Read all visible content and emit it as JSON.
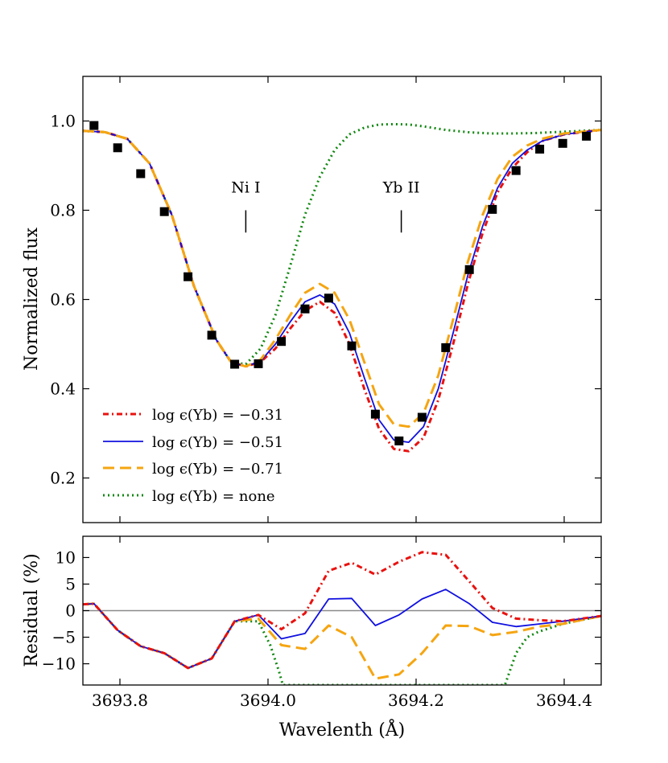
{
  "chart_data": [
    {
      "type": "line",
      "panel": "top",
      "ylabel": "Normalized flux",
      "xlim": [
        3693.75,
        3694.45
      ],
      "ylim": [
        0.1,
        1.1
      ],
      "xticks": [
        3693.8,
        3694.0,
        3694.2,
        3694.4
      ],
      "yticks": [
        0.2,
        0.4,
        0.6,
        0.8,
        1.0
      ],
      "ytick_labels": [
        "0.2",
        "0.4",
        "0.6",
        "0.8",
        "1.0"
      ],
      "annotations": [
        {
          "text": "Ni I",
          "x": 3693.97,
          "y_text": 0.84,
          "line_y": [
            0.75,
            0.8
          ]
        },
        {
          "text": "Yb II",
          "x": 3694.18,
          "y_text": 0.84,
          "line_y": [
            0.75,
            0.8
          ]
        }
      ],
      "observed": {
        "name": "Observed",
        "color": "#000000",
        "x": [
          3693.765,
          3693.797,
          3693.828,
          3693.86,
          3693.892,
          3693.924,
          3693.955,
          3693.987,
          3694.018,
          3694.05,
          3694.082,
          3694.113,
          3694.145,
          3694.177,
          3694.208,
          3694.24,
          3694.272,
          3694.303,
          3694.335,
          3694.367,
          3694.398,
          3694.43
        ],
        "y": [
          0.99,
          0.94,
          0.882,
          0.797,
          0.651,
          0.52,
          0.455,
          0.456,
          0.506,
          0.579,
          0.603,
          0.496,
          0.343,
          0.283,
          0.336,
          0.492,
          0.667,
          0.802,
          0.889,
          0.937,
          0.95,
          0.966
        ]
      },
      "series": [
        {
          "name": "Yb -0.31",
          "color": "#e8120f",
          "dash": "7 4 2 4",
          "x": [
            3693.75,
            3693.78,
            3693.81,
            3693.84,
            3693.87,
            3693.9,
            3693.93,
            3693.95,
            3693.97,
            3693.99,
            3694.01,
            3694.03,
            3694.05,
            3694.07,
            3694.09,
            3694.11,
            3694.13,
            3694.15,
            3694.17,
            3694.19,
            3694.21,
            3694.23,
            3694.25,
            3694.27,
            3694.29,
            3694.31,
            3694.33,
            3694.35,
            3694.37,
            3694.4,
            3694.45
          ],
          "y": [
            0.978,
            0.975,
            0.96,
            0.905,
            0.79,
            0.63,
            0.51,
            0.46,
            0.45,
            0.46,
            0.49,
            0.535,
            0.575,
            0.595,
            0.57,
            0.5,
            0.4,
            0.31,
            0.265,
            0.26,
            0.29,
            0.375,
            0.5,
            0.635,
            0.75,
            0.84,
            0.895,
            0.93,
            0.955,
            0.97,
            0.98
          ]
        },
        {
          "name": "Yb -0.51",
          "color": "#1010e0",
          "dash": "",
          "x": [
            3693.75,
            3693.78,
            3693.81,
            3693.84,
            3693.87,
            3693.9,
            3693.93,
            3693.95,
            3693.97,
            3693.99,
            3694.01,
            3694.03,
            3694.05,
            3694.07,
            3694.09,
            3694.11,
            3694.13,
            3694.15,
            3694.17,
            3694.19,
            3694.21,
            3694.23,
            3694.25,
            3694.27,
            3694.29,
            3694.31,
            3694.33,
            3694.35,
            3694.37,
            3694.4,
            3694.45
          ],
          "y": [
            0.978,
            0.975,
            0.96,
            0.905,
            0.79,
            0.63,
            0.51,
            0.46,
            0.45,
            0.462,
            0.5,
            0.55,
            0.595,
            0.61,
            0.59,
            0.525,
            0.425,
            0.33,
            0.285,
            0.28,
            0.315,
            0.4,
            0.525,
            0.655,
            0.765,
            0.85,
            0.905,
            0.935,
            0.955,
            0.97,
            0.98
          ]
        },
        {
          "name": "Yb -0.71",
          "color": "#f5a511",
          "dash": "14 7",
          "x": [
            3693.75,
            3693.78,
            3693.81,
            3693.84,
            3693.87,
            3693.9,
            3693.93,
            3693.95,
            3693.97,
            3693.99,
            3694.01,
            3694.03,
            3694.05,
            3694.07,
            3694.09,
            3694.11,
            3694.13,
            3694.15,
            3694.17,
            3694.19,
            3694.21,
            3694.23,
            3694.25,
            3694.27,
            3694.29,
            3694.31,
            3694.33,
            3694.35,
            3694.37,
            3694.4,
            3694.45
          ],
          "y": [
            0.978,
            0.975,
            0.96,
            0.905,
            0.79,
            0.63,
            0.51,
            0.46,
            0.45,
            0.465,
            0.51,
            0.565,
            0.615,
            0.635,
            0.615,
            0.555,
            0.46,
            0.365,
            0.32,
            0.315,
            0.345,
            0.43,
            0.555,
            0.685,
            0.79,
            0.87,
            0.92,
            0.945,
            0.96,
            0.972,
            0.98
          ]
        },
        {
          "name": "Yb none",
          "color": "#118811",
          "dash": "2 4",
          "x": [
            3693.75,
            3693.78,
            3693.81,
            3693.84,
            3693.87,
            3693.9,
            3693.93,
            3693.95,
            3693.97,
            3693.99,
            3694.01,
            3694.03,
            3694.05,
            3694.07,
            3694.09,
            3694.11,
            3694.13,
            3694.15,
            3694.17,
            3694.19,
            3694.21,
            3694.24,
            3694.27,
            3694.3,
            3694.33,
            3694.36,
            3694.4,
            3694.45
          ],
          "y": [
            0.978,
            0.975,
            0.96,
            0.905,
            0.79,
            0.63,
            0.51,
            0.46,
            0.455,
            0.49,
            0.565,
            0.675,
            0.79,
            0.875,
            0.935,
            0.97,
            0.985,
            0.992,
            0.993,
            0.992,
            0.988,
            0.98,
            0.975,
            0.972,
            0.972,
            0.973,
            0.976,
            0.98
          ]
        }
      ],
      "legend": {
        "placement": "lower-left",
        "entries": [
          {
            "label": "log ϵ(Yb) = −0.31",
            "series": 0
          },
          {
            "label": "log ϵ(Yb) = −0.51",
            "series": 1
          },
          {
            "label": "log ϵ(Yb) = −0.71",
            "series": 2
          },
          {
            "label": "log ϵ(Yb) = none",
            "series": 3
          }
        ]
      }
    },
    {
      "type": "line",
      "panel": "bottom",
      "xlabel": "Wavelenth (Å)",
      "ylabel": "Residual (%)",
      "xlim": [
        3693.75,
        3694.45
      ],
      "ylim": [
        -14,
        14
      ],
      "xticks": [
        3693.8,
        3694.0,
        3694.2,
        3694.4
      ],
      "xtick_labels": [
        "3693.8",
        "3694.0",
        "3694.2",
        "3694.4"
      ],
      "yticks": [
        -10,
        -5,
        0,
        5,
        10
      ],
      "ytick_labels": [
        "−10",
        "−5",
        "0",
        "5",
        "10"
      ],
      "zero_line": 0,
      "series": [
        {
          "name": "Yb -0.31 residual",
          "color": "#e8120f",
          "dash": "7 4 2 4",
          "x": [
            3693.75,
            3693.765,
            3693.797,
            3693.828,
            3693.86,
            3693.892,
            3693.924,
            3693.955,
            3693.987,
            3694.018,
            3694.05,
            3694.082,
            3694.113,
            3694.145,
            3694.177,
            3694.208,
            3694.24,
            3694.272,
            3694.303,
            3694.335,
            3694.367,
            3694.398,
            3694.45
          ],
          "y": [
            1.2,
            1.3,
            -3.7,
            -6.7,
            -8.0,
            -10.8,
            -9.0,
            -2.0,
            -0.8,
            -3.5,
            -0.5,
            7.5,
            9.0,
            6.8,
            9.2,
            11.0,
            10.5,
            5.5,
            0.5,
            -1.5,
            -1.8,
            -2.0,
            -1.0
          ]
        },
        {
          "name": "Yb -0.51 residual",
          "color": "#1010e0",
          "dash": "",
          "x": [
            3693.75,
            3693.765,
            3693.797,
            3693.828,
            3693.86,
            3693.892,
            3693.924,
            3693.955,
            3693.987,
            3694.018,
            3694.05,
            3694.082,
            3694.113,
            3694.145,
            3694.177,
            3694.208,
            3694.24,
            3694.272,
            3694.303,
            3694.335,
            3694.367,
            3694.398,
            3694.45
          ],
          "y": [
            1.2,
            1.3,
            -3.7,
            -6.7,
            -8.0,
            -10.8,
            -9.0,
            -2.0,
            -0.8,
            -5.3,
            -4.3,
            2.2,
            2.3,
            -2.8,
            -0.8,
            2.2,
            4.0,
            1.3,
            -2.2,
            -3.0,
            -2.5,
            -2.0,
            -1.0
          ]
        },
        {
          "name": "Yb -0.71 residual",
          "color": "#f5a511",
          "dash": "14 7",
          "x": [
            3693.75,
            3693.765,
            3693.797,
            3693.828,
            3693.86,
            3693.892,
            3693.924,
            3693.955,
            3693.987,
            3694.018,
            3694.05,
            3694.082,
            3694.113,
            3694.145,
            3694.177,
            3694.208,
            3694.24,
            3694.272,
            3694.303,
            3694.335,
            3694.367,
            3694.398,
            3694.45
          ],
          "y": [
            1.2,
            1.3,
            -3.7,
            -6.7,
            -8.0,
            -10.8,
            -9.0,
            -2.0,
            -1.5,
            -6.5,
            -7.2,
            -2.8,
            -5.0,
            -12.8,
            -12.0,
            -8.0,
            -2.8,
            -2.9,
            -4.6,
            -4.0,
            -3.0,
            -2.5,
            -1.0
          ]
        },
        {
          "name": "Yb none residual",
          "color": "#118811",
          "dash": "2 4",
          "x": [
            3693.75,
            3693.765,
            3693.797,
            3693.828,
            3693.86,
            3693.892,
            3693.924,
            3693.955,
            3693.987,
            3694.003,
            3694.015,
            3694.02,
            3694.32,
            3694.325,
            3694.335,
            3694.35,
            3694.365,
            3694.398,
            3694.45
          ],
          "y": [
            1.2,
            1.3,
            -3.7,
            -6.7,
            -8.0,
            -10.8,
            -9.0,
            -2.0,
            -2.0,
            -6.5,
            -11.5,
            -14.0,
            -14.0,
            -12.0,
            -8.0,
            -5.0,
            -4.0,
            -2.5,
            -1.0
          ]
        }
      ]
    }
  ]
}
